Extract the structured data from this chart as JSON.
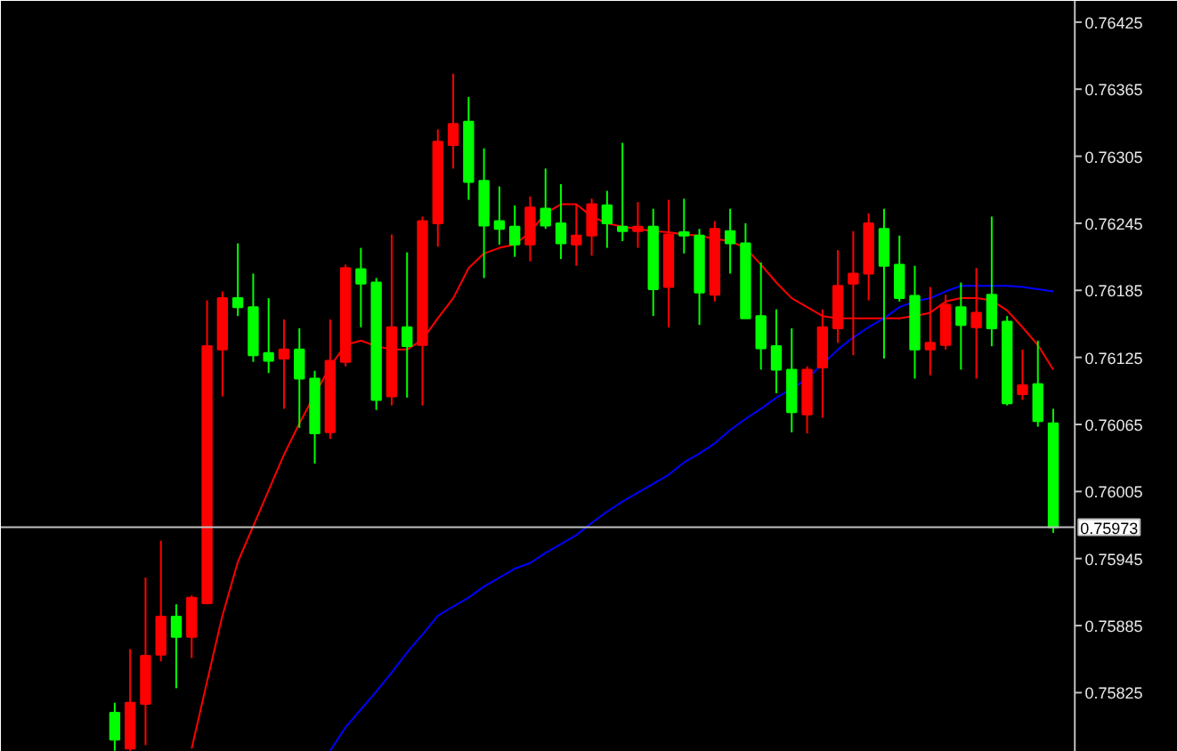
{
  "chart_data": {
    "type": "candlestick",
    "categories": [
      null,
      null,
      null,
      null,
      null,
      null,
      null,
      null,
      null,
      null,
      null,
      null,
      null,
      null,
      null,
      null,
      null,
      null,
      null,
      null,
      null,
      null,
      null,
      null,
      null,
      null,
      null,
      null,
      null,
      null,
      null,
      null,
      null,
      null,
      null,
      null,
      null,
      null,
      null,
      null,
      null,
      null,
      null,
      null,
      null,
      null,
      null,
      null,
      null,
      null,
      null,
      null,
      null,
      null,
      null,
      null,
      null,
      null,
      null,
      null,
      null,
      null
    ],
    "ohlc": [
      [
        0.75807,
        0.75816,
        0.75773,
        0.75783
      ],
      [
        0.75775,
        0.75864,
        0.75773,
        0.75816
      ],
      [
        0.75815,
        0.75928,
        0.75778,
        0.75858
      ],
      [
        0.75859,
        0.75961,
        0.75853,
        0.75893
      ],
      [
        0.75893,
        0.75904,
        0.75829,
        0.75875
      ],
      [
        0.75875,
        0.75912,
        0.75856,
        0.7591
      ],
      [
        0.75905,
        0.76176,
        0.75904,
        0.76135
      ],
      [
        0.76132,
        0.76184,
        0.7609,
        0.76178
      ],
      [
        0.76178,
        0.76227,
        0.76162,
        0.7617
      ],
      [
        0.7617,
        0.762,
        0.76121,
        0.76127
      ],
      [
        0.76129,
        0.76178,
        0.76111,
        0.76122
      ],
      [
        0.76124,
        0.76159,
        0.76079,
        0.76132
      ],
      [
        0.76132,
        0.76151,
        0.76062,
        0.76106
      ],
      [
        0.76106,
        0.76113,
        0.7603,
        0.76057
      ],
      [
        0.76058,
        0.76159,
        0.76052,
        0.76122
      ],
      [
        0.76121,
        0.76208,
        0.76117,
        0.76205
      ],
      [
        0.76204,
        0.76223,
        0.76152,
        0.76191
      ],
      [
        0.76192,
        0.76196,
        0.76078,
        0.76087
      ],
      [
        0.7609,
        0.76235,
        0.76082,
        0.76152
      ],
      [
        0.76152,
        0.76219,
        0.76089,
        0.76135
      ],
      [
        0.76136,
        0.76251,
        0.76082,
        0.76247
      ],
      [
        0.76245,
        0.76329,
        0.76224,
        0.76318
      ],
      [
        0.76315,
        0.76379,
        0.76294,
        0.76334
      ],
      [
        0.76336,
        0.76358,
        0.76266,
        0.76282
      ],
      [
        0.76283,
        0.76312,
        0.76196,
        0.76243
      ],
      [
        0.76247,
        0.76278,
        0.76226,
        0.7624
      ],
      [
        0.76242,
        0.76261,
        0.76215,
        0.76226
      ],
      [
        0.76226,
        0.76269,
        0.76211,
        0.76259
      ],
      [
        0.76258,
        0.76294,
        0.7624,
        0.76243
      ],
      [
        0.76245,
        0.7628,
        0.76213,
        0.76227
      ],
      [
        0.76226,
        0.76262,
        0.76207,
        0.76234
      ],
      [
        0.76234,
        0.76267,
        0.76216,
        0.76262
      ],
      [
        0.76261,
        0.76274,
        0.76223,
        0.76245
      ],
      [
        0.76242,
        0.76317,
        0.76229,
        0.76238
      ],
      [
        0.76238,
        0.76264,
        0.76223,
        0.76242
      ],
      [
        0.76242,
        0.76258,
        0.76162,
        0.76186
      ],
      [
        0.76188,
        0.76266,
        0.76152,
        0.76235
      ],
      [
        0.76237,
        0.76267,
        0.76218,
        0.76234
      ],
      [
        0.76234,
        0.7624,
        0.76154,
        0.76183
      ],
      [
        0.76181,
        0.76247,
        0.76175,
        0.7624
      ],
      [
        0.76238,
        0.76258,
        0.762,
        0.76227
      ],
      [
        0.76227,
        0.76245,
        0.7616,
        0.7616
      ],
      [
        0.76162,
        0.7621,
        0.76114,
        0.76133
      ],
      [
        0.76135,
        0.76168,
        0.76093,
        0.76114
      ],
      [
        0.76114,
        0.76151,
        0.76058,
        0.76076
      ],
      [
        0.76074,
        0.76117,
        0.76057,
        0.76114
      ],
      [
        0.76116,
        0.76168,
        0.76071,
        0.76152
      ],
      [
        0.76151,
        0.76221,
        0.76138,
        0.76189
      ],
      [
        0.76191,
        0.76238,
        0.76127,
        0.762
      ],
      [
        0.762,
        0.76254,
        0.76176,
        0.76245
      ],
      [
        0.7624,
        0.76258,
        0.76124,
        0.76207
      ],
      [
        0.76208,
        0.76234,
        0.76175,
        0.76178
      ],
      [
        0.7618,
        0.76207,
        0.76106,
        0.76132
      ],
      [
        0.76132,
        0.76188,
        0.76109,
        0.76138
      ],
      [
        0.76136,
        0.76181,
        0.76132,
        0.76172
      ],
      [
        0.7617,
        0.76192,
        0.76114,
        0.76154
      ],
      [
        0.76152,
        0.76205,
        0.76106,
        0.76165
      ],
      [
        0.76181,
        0.76251,
        0.76135,
        0.76151
      ],
      [
        0.76157,
        0.76162,
        0.76082,
        0.76084
      ],
      [
        0.76092,
        0.76132,
        0.76087,
        0.761
      ],
      [
        0.76101,
        0.7614,
        0.76063,
        0.76068
      ],
      [
        0.76066,
        0.76079,
        0.75968,
        0.75973
      ]
    ],
    "colors": [
      "#00ff00",
      "#ff0000",
      "#ff0000",
      "#ff0000",
      "#00ff00",
      "#ff0000",
      "#ff0000",
      "#ff0000",
      "#00ff00",
      "#00ff00",
      "#00ff00",
      "#ff0000",
      "#00ff00",
      "#00ff00",
      "#ff0000",
      "#ff0000",
      "#00ff00",
      "#00ff00",
      "#ff0000",
      "#00ff00",
      "#ff0000",
      "#ff0000",
      "#ff0000",
      "#00ff00",
      "#00ff00",
      "#00ff00",
      "#00ff00",
      "#ff0000",
      "#00ff00",
      "#00ff00",
      "#ff0000",
      "#ff0000",
      "#00ff00",
      "#00ff00",
      "#ff0000",
      "#00ff00",
      "#ff0000",
      "#00ff00",
      "#00ff00",
      "#ff0000",
      "#00ff00",
      "#00ff00",
      "#00ff00",
      "#00ff00",
      "#00ff00",
      "#ff0000",
      "#ff0000",
      "#ff0000",
      "#ff0000",
      "#ff0000",
      "#00ff00",
      "#00ff00",
      "#00ff00",
      "#ff0000",
      "#ff0000",
      "#00ff00",
      "#ff0000",
      "#00ff00",
      "#00ff00",
      "#ff0000",
      "#00ff00",
      "#00ff00"
    ],
    "series": [
      {
        "type": "line",
        "color": "#ff0000",
        "values": [
          null,
          null,
          null,
          null,
          null,
          0.75775,
          0.75835,
          0.75894,
          0.75942,
          0.75974,
          0.76006,
          0.76038,
          0.76066,
          null,
          0.76117,
          0.76136,
          0.7614,
          0.76135,
          0.76132,
          0.76132,
          0.76141,
          0.7616,
          0.76178,
          0.76205,
          0.76218,
          0.76223,
          0.76226,
          0.76237,
          0.76254,
          0.76262,
          0.76262,
          0.76251,
          0.76245,
          0.76242,
          0.7624,
          0.76238,
          0.76237,
          0.76235,
          0.76234,
          0.76231,
          0.76229,
          0.76223,
          0.76208,
          0.76192,
          0.76178,
          0.7617,
          0.76162,
          0.7616,
          0.7616,
          0.7616,
          0.7616,
          0.7616,
          0.76162,
          0.76165,
          0.76175,
          0.76178,
          0.76178,
          0.76176,
          0.76167,
          0.76152,
          0.76136,
          0.76114
        ]
      },
      {
        "type": "line",
        "color": "#0000ff",
        "values": [
          null,
          null,
          null,
          null,
          null,
          null,
          null,
          null,
          null,
          null,
          null,
          null,
          null,
          null,
          0.75773,
          0.75794,
          0.7581,
          0.75826,
          0.75843,
          0.75861,
          0.75877,
          0.75894,
          0.75902,
          0.7591,
          0.7592,
          0.75928,
          0.75936,
          0.75941,
          0.7595,
          0.75958,
          0.75966,
          0.75977,
          0.75987,
          0.75996,
          0.76004,
          0.76012,
          0.7602,
          0.76031,
          0.76039,
          0.76048,
          0.7606,
          0.7607,
          0.76079,
          0.76089,
          0.76097,
          0.76106,
          0.76119,
          0.76132,
          0.76143,
          0.76152,
          0.7616,
          0.7617,
          0.76175,
          0.76178,
          0.76184,
          0.76189,
          0.76189,
          0.76189,
          0.76189,
          0.76188,
          0.76186,
          0.76184
        ]
      }
    ],
    "ylim": [
      0.75772,
      0.76444
    ],
    "yticks": [
      0.76425,
      0.76365,
      0.76305,
      0.76245,
      0.76185,
      0.76125,
      0.76065,
      0.76005,
      0.75945,
      0.75885,
      0.75825
    ],
    "ref_lines": [
      {
        "axis": "y",
        "value": 0.75973,
        "label": "0.75973",
        "color": "#c0c0c0"
      }
    ],
    "tick_labels": "y",
    "grid": false
  }
}
